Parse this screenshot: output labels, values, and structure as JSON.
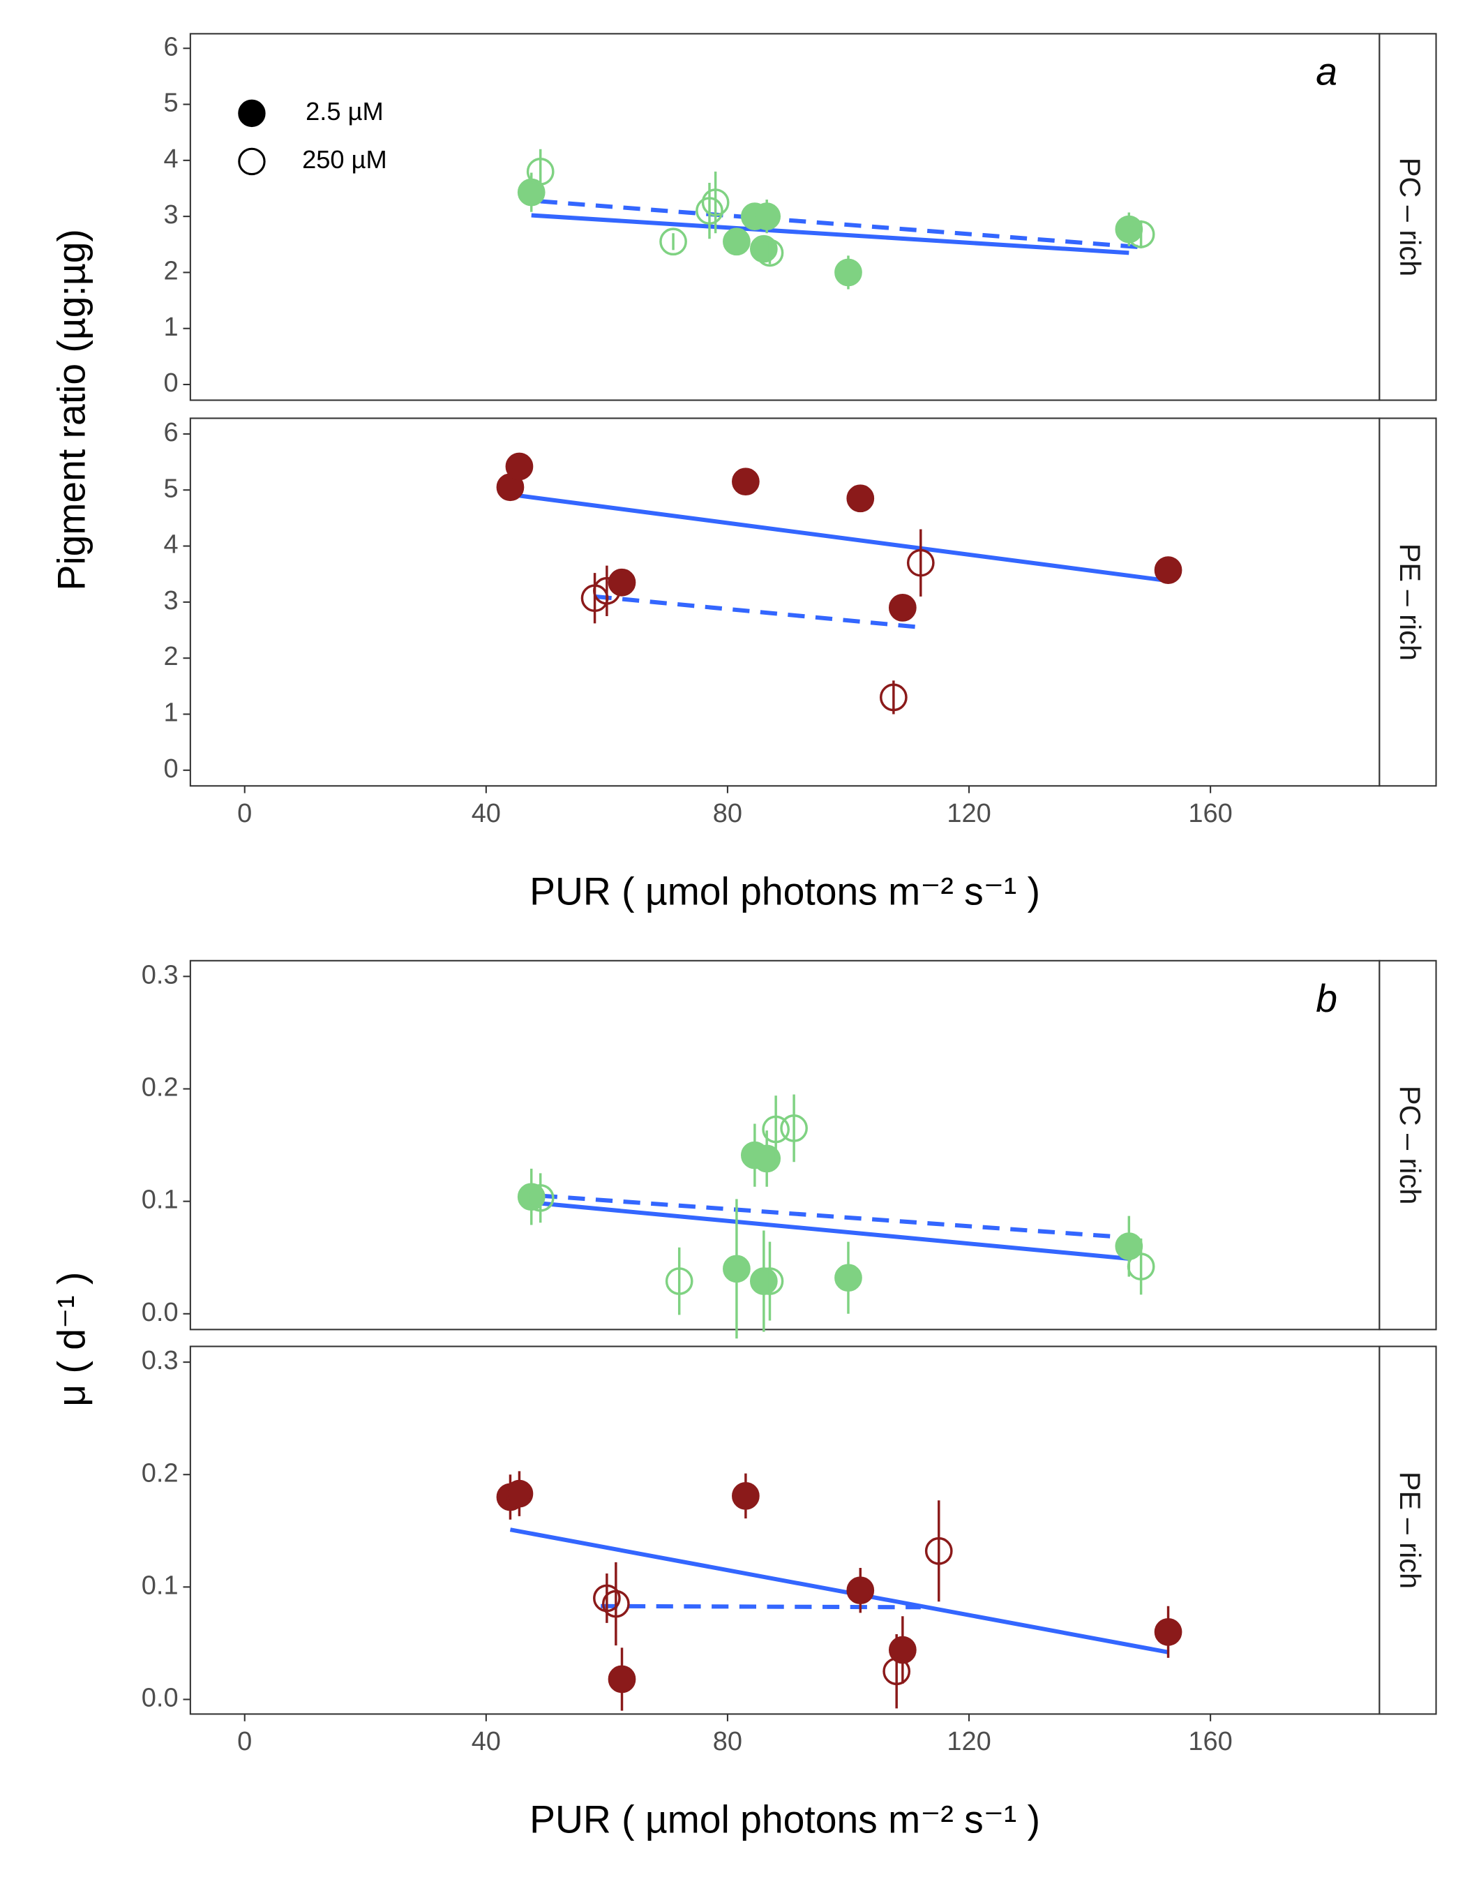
{
  "chart_data": [
    {
      "type": "scatter",
      "annotation": "a",
      "ylabel": "Pigment ratio (µg:µg)",
      "strip": "PC – rich",
      "xlim": [
        -9,
        188
      ],
      "ylim": [
        -0.28,
        6.26
      ],
      "yticks": [
        0,
        1,
        2,
        3,
        4,
        5,
        6
      ],
      "legend": "top-left",
      "color": "#7fd282",
      "series": [
        {
          "name": "2.5 µM",
          "marker": "filled",
          "x": [
            47.5,
            81.5,
            84.5,
            86,
            86.5,
            100,
            146.5
          ],
          "values": [
            3.43,
            2.55,
            3.0,
            2.42,
            3.0,
            2.0,
            2.77
          ],
          "errors": [
            0.35,
            0.2,
            0.2,
            0.2,
            0.3,
            0.3,
            0.3
          ]
        },
        {
          "name": "250 µM",
          "marker": "open",
          "x": [
            49,
            71,
            77,
            78,
            87,
            148.5
          ],
          "values": [
            3.8,
            2.55,
            3.1,
            3.25,
            2.35,
            2.68
          ],
          "errors": [
            0.4,
            0.15,
            0.5,
            0.55,
            0.2,
            0.25
          ]
        }
      ],
      "fits": [
        {
          "dash": false,
          "x": [
            47.5,
            146.5
          ],
          "values": [
            3.02,
            2.35
          ]
        },
        {
          "dash": true,
          "x": [
            49,
            148.5
          ],
          "values": [
            3.27,
            2.45
          ]
        }
      ]
    },
    {
      "type": "scatter",
      "strip": "PE – rich",
      "xlabel": "PUR ( µmol photons  m⁻²  s⁻¹ )",
      "xlim": [
        -9,
        188
      ],
      "xticks": [
        0,
        40,
        80,
        120,
        160
      ],
      "ylim": [
        -0.28,
        6.28
      ],
      "yticks": [
        0,
        1,
        2,
        3,
        4,
        5,
        6
      ],
      "color": "#8b1a1a",
      "series": [
        {
          "marker": "filled",
          "x": [
            44,
            45.5,
            62.5,
            83,
            102,
            109,
            153
          ],
          "values": [
            5.05,
            5.42,
            3.35,
            5.15,
            4.85,
            2.9,
            3.57
          ],
          "errors": [
            0.15,
            0.15,
            0.15,
            0.1,
            0.1,
            0.1,
            0.1
          ]
        },
        {
          "marker": "open",
          "x": [
            58,
            60,
            107.5,
            112
          ],
          "values": [
            3.07,
            3.2,
            1.3,
            3.7
          ],
          "errors": [
            0.45,
            0.45,
            0.3,
            0.6
          ]
        }
      ],
      "fits": [
        {
          "dash": false,
          "x": [
            44,
            153
          ],
          "values": [
            4.92,
            3.38
          ]
        },
        {
          "dash": true,
          "x": [
            58,
            112
          ],
          "values": [
            3.1,
            2.55
          ]
        }
      ]
    },
    {
      "type": "scatter",
      "annotation": "b",
      "ylabel": "μ  ( d⁻¹ )",
      "strip": "PC – rich",
      "xlim": [
        -9,
        188
      ],
      "ylim": [
        -0.014,
        0.314
      ],
      "yticks": [
        {
          "value": 0,
          "label": "0.0"
        },
        0.1,
        0.2,
        0.3
      ],
      "color": "#7fd282",
      "series": [
        {
          "marker": "filled",
          "x": [
            47.5,
            81.5,
            84.5,
            86,
            86.5,
            100,
            146.5
          ],
          "values": [
            0.104,
            0.04,
            0.141,
            0.029,
            0.138,
            0.032,
            0.06
          ],
          "errors": [
            0.025,
            0.062,
            0.028,
            0.045,
            0.025,
            0.032,
            0.027
          ]
        },
        {
          "marker": "open",
          "x": [
            49,
            72,
            87,
            88,
            91,
            148.5
          ],
          "values": [
            0.103,
            0.029,
            0.029,
            0.164,
            0.165,
            0.042
          ],
          "errors": [
            0.022,
            0.03,
            0.035,
            0.03,
            0.03,
            0.025
          ]
        }
      ],
      "fits": [
        {
          "dash": false,
          "x": [
            47.5,
            146.5
          ],
          "values": [
            0.099,
            0.049
          ]
        },
        {
          "dash": true,
          "x": [
            49,
            148.5
          ],
          "values": [
            0.105,
            0.067
          ]
        }
      ]
    },
    {
      "type": "scatter",
      "strip": "PE – rich",
      "xlabel": "PUR ( µmol photons  m⁻²  s⁻¹ )",
      "xlim": [
        -9,
        188
      ],
      "xticks": [
        0,
        40,
        80,
        120,
        160
      ],
      "ylim": [
        -0.013,
        0.314
      ],
      "yticks": [
        {
          "value": 0,
          "label": "0.0"
        },
        0.1,
        0.2,
        0.3
      ],
      "color": "#8b1a1a",
      "series": [
        {
          "marker": "filled",
          "x": [
            44,
            45.5,
            62.5,
            83,
            102,
            109,
            153
          ],
          "values": [
            0.18,
            0.183,
            0.018,
            0.181,
            0.097,
            0.044,
            0.06
          ],
          "errors": [
            0.02,
            0.02,
            0.028,
            0.02,
            0.02,
            0.03,
            0.023
          ]
        },
        {
          "marker": "open",
          "x": [
            60,
            61.5,
            108,
            115
          ],
          "values": [
            0.09,
            0.085,
            0.025,
            0.132
          ],
          "errors": [
            0.022,
            0.037,
            0.033,
            0.045
          ]
        }
      ],
      "fits": [
        {
          "dash": false,
          "x": [
            44,
            153
          ],
          "values": [
            0.151,
            0.042
          ]
        },
        {
          "dash": true,
          "x": [
            59,
            112
          ],
          "values": [
            0.083,
            0.082
          ]
        }
      ]
    }
  ]
}
